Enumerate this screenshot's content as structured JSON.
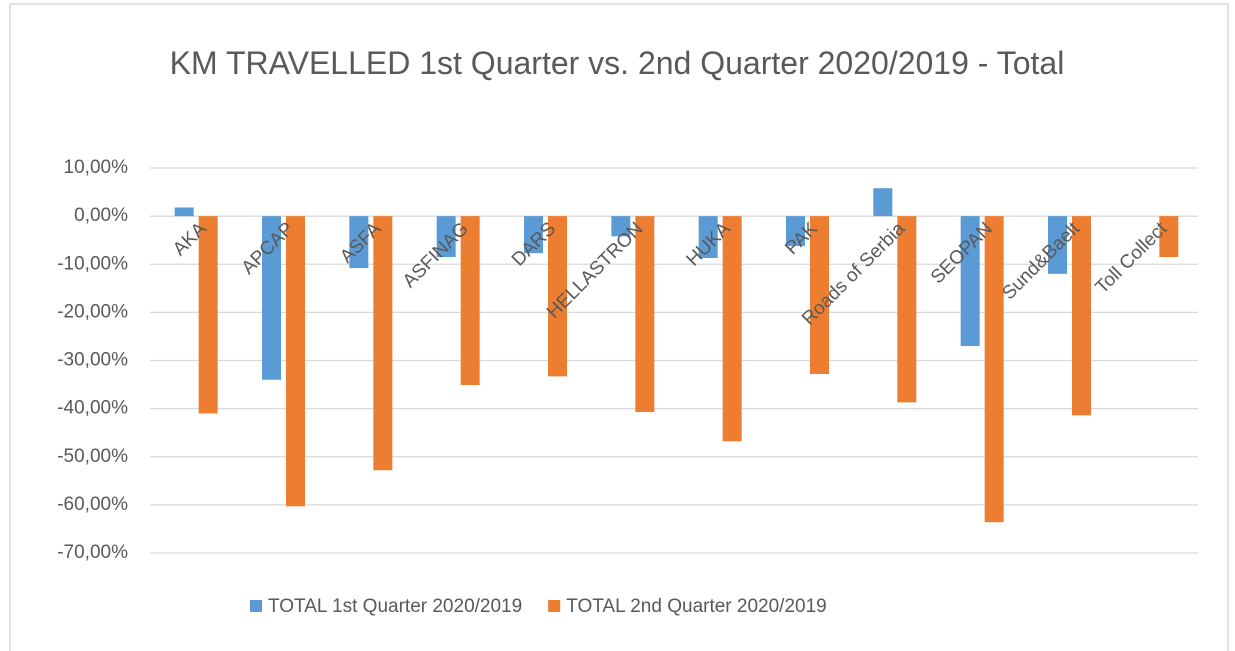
{
  "chart_data": {
    "type": "bar",
    "title": "KM TRAVELLED 1st Quarter vs. 2nd Quarter 2020/2019 - Total",
    "categories": [
      "AKA",
      "APCAP",
      "ASFA",
      "ASFINAG",
      "DARS",
      "HELLASTRON",
      "HUKA",
      "PAK",
      "Roads of Serbia",
      "SEOPAN",
      "Sund&Baelt",
      "Toll Collect"
    ],
    "series": [
      {
        "name": "TOTAL 1st Quarter 2020/2019",
        "color": "#5b9bd5",
        "values": [
          1.8,
          -34,
          -10.8,
          -8.5,
          -7.7,
          -4.2,
          -8.7,
          -6.2,
          5.8,
          -27,
          -12,
          null
        ]
      },
      {
        "name": "TOTAL 2nd Quarter 2020/2019",
        "color": "#ed7d31",
        "values": [
          -41,
          -60.3,
          -52.8,
          -35.1,
          -33.3,
          -40.7,
          -46.8,
          -32.8,
          -38.7,
          -63.6,
          -41.4,
          -8.5
        ]
      }
    ],
    "ylim": [
      -70,
      10
    ],
    "yticks": [
      {
        "value": 10,
        "label": "10,00%"
      },
      {
        "value": 0,
        "label": "0,00%"
      },
      {
        "value": -10,
        "label": "-10,00%"
      },
      {
        "value": -20,
        "label": "-20,00%"
      },
      {
        "value": -30,
        "label": "-30,00%"
      },
      {
        "value": -40,
        "label": "-40,00%"
      },
      {
        "value": -50,
        "label": "-50,00%"
      },
      {
        "value": -60,
        "label": "-60,00%"
      },
      {
        "value": -70,
        "label": "-70,00%"
      }
    ],
    "grid": true,
    "legend": "bottom"
  }
}
